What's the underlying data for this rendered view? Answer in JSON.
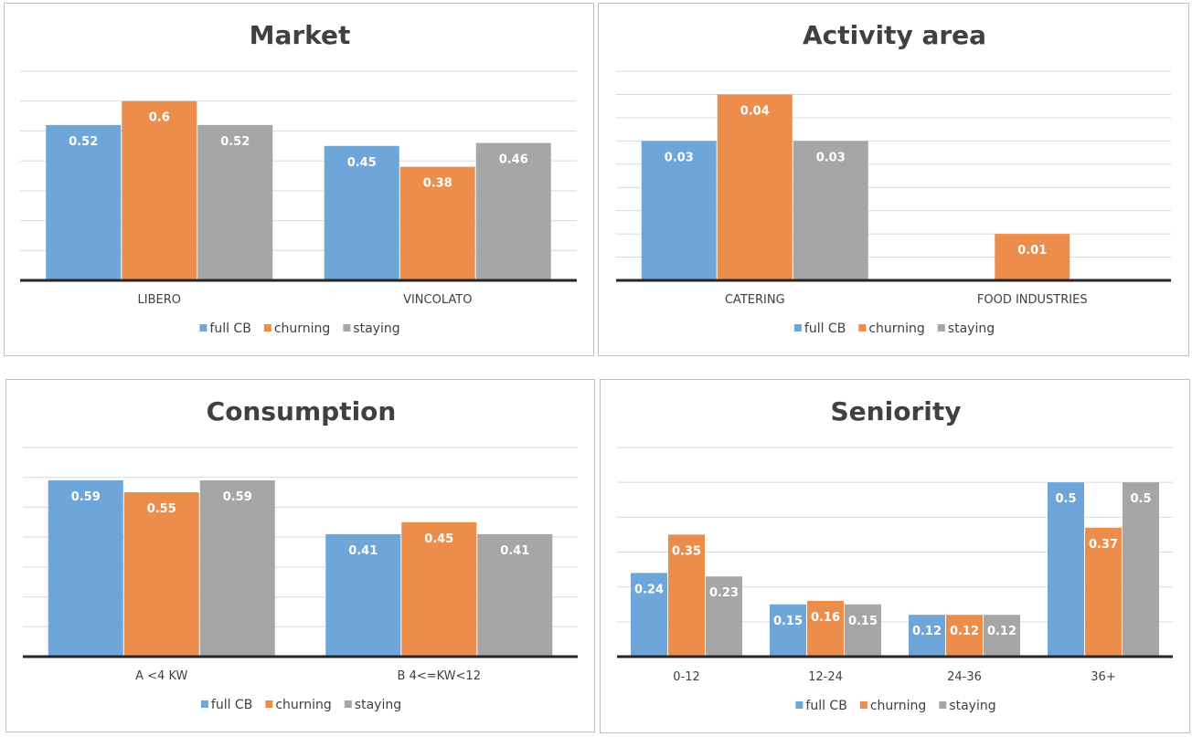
{
  "colors": {
    "full CB": "#6fa6da",
    "churning": "#ed8d4c",
    "staying": "#a6a6a6"
  },
  "chart_data": [
    {
      "type": "bar",
      "title": "Market",
      "categories": [
        "LIBERO",
        "VINCOLATO"
      ],
      "series": [
        {
          "name": "full CB",
          "values": [
            0.52,
            0.45
          ],
          "labels": [
            "0.52",
            "0.45"
          ]
        },
        {
          "name": "churning",
          "values": [
            0.6,
            0.38
          ],
          "labels": [
            "0.6",
            "0.38"
          ]
        },
        {
          "name": "staying",
          "values": [
            0.52,
            0.46
          ],
          "labels": [
            "0.52",
            "0.46"
          ]
        }
      ],
      "ylim": [
        0,
        0.7
      ],
      "grid": true,
      "legend": "bottom"
    },
    {
      "type": "bar",
      "title": "Activity area",
      "categories": [
        "CATERING",
        "FOOD INDUSTRIES"
      ],
      "series": [
        {
          "name": "full CB",
          "values": [
            0.03,
            0
          ],
          "labels": [
            "0.03",
            ""
          ]
        },
        {
          "name": "churning",
          "values": [
            0.04,
            0.01
          ],
          "labels": [
            "0.04",
            "0.01"
          ]
        },
        {
          "name": "staying",
          "values": [
            0.03,
            0
          ],
          "labels": [
            "0.03",
            ""
          ]
        }
      ],
      "ylim": [
        0,
        0.045
      ],
      "grid": true,
      "legend": "bottom"
    },
    {
      "type": "bar",
      "title": "Consumption",
      "categories": [
        "A <4 KW",
        "B 4<=KW<12"
      ],
      "series": [
        {
          "name": "full CB",
          "values": [
            0.59,
            0.41
          ],
          "labels": [
            "0.59",
            "0.41"
          ]
        },
        {
          "name": "churning",
          "values": [
            0.55,
            0.45
          ],
          "labels": [
            "0.55",
            "0.45"
          ]
        },
        {
          "name": "staying",
          "values": [
            0.59,
            0.41
          ],
          "labels": [
            "0.59",
            "0.41"
          ]
        }
      ],
      "ylim": [
        0,
        0.7
      ],
      "grid": true,
      "legend": "bottom"
    },
    {
      "type": "bar",
      "title": "Seniority",
      "categories": [
        "0-12",
        "12-24",
        "24-36",
        "36+"
      ],
      "series": [
        {
          "name": "full CB",
          "values": [
            0.24,
            0.15,
            0.12,
            0.5
          ],
          "labels": [
            "0.24",
            "0.15",
            "0.12",
            "0.5"
          ]
        },
        {
          "name": "churning",
          "values": [
            0.35,
            0.16,
            0.12,
            0.37
          ],
          "labels": [
            "0.35",
            "0.16",
            "0.12",
            "0.37"
          ]
        },
        {
          "name": "staying",
          "values": [
            0.23,
            0.15,
            0.12,
            0.5
          ],
          "labels": [
            "0.23",
            "0.15",
            "0.12",
            "0.5"
          ]
        }
      ],
      "ylim": [
        0,
        0.6
      ],
      "grid": true,
      "legend": "bottom"
    }
  ]
}
